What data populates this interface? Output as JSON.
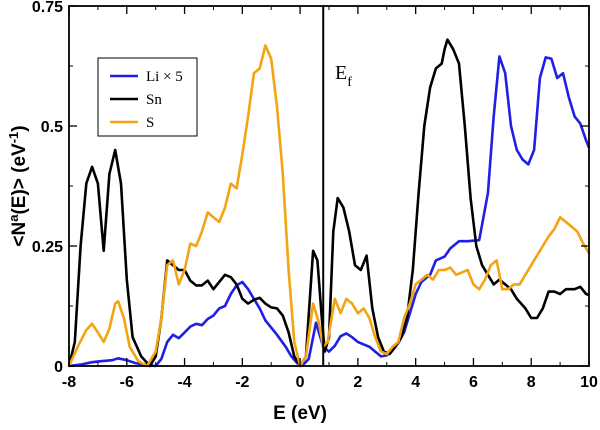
{
  "chart_data": {
    "type": "line",
    "title": "",
    "xlabel": "E  (eV)",
    "ylabel_main": "<N",
    "ylabel_sup": "a",
    "ylabel_mid": "(E)>  (eV",
    "ylabel_sup2": "-1",
    "ylabel_end": ")",
    "xlim": [
      -8,
      10
    ],
    "ylim": [
      0,
      0.75
    ],
    "xticks": [
      -8,
      -6,
      -4,
      -2,
      0,
      2,
      4,
      6,
      8,
      10
    ],
    "xtick_labels": [
      "-8",
      "-6",
      "-4",
      "-2",
      "0",
      "2",
      "4",
      "6",
      "8",
      "10"
    ],
    "yticks": [
      0,
      0.25,
      0.5,
      0.75
    ],
    "ytick_labels": [
      "0",
      "0.25",
      "0.5",
      "0.75"
    ],
    "grid": false,
    "legend_position": "top-left",
    "fermi_level": 0.8,
    "annotation": {
      "text": "E",
      "sub": "f"
    },
    "series": [
      {
        "name": "Li × 5",
        "color": "#1f1fe6",
        "points": [
          [
            -8,
            0.0
          ],
          [
            -7.6,
            0.003
          ],
          [
            -7.2,
            0.008
          ],
          [
            -6.9,
            0.01
          ],
          [
            -6.5,
            0.012
          ],
          [
            -6.3,
            0.016
          ],
          [
            -6.0,
            0.012
          ],
          [
            -5.7,
            0.006
          ],
          [
            -5.3,
            0.002
          ],
          [
            -5.0,
            0.0
          ],
          [
            -4.8,
            0.015
          ],
          [
            -4.6,
            0.05
          ],
          [
            -4.4,
            0.065
          ],
          [
            -4.2,
            0.058
          ],
          [
            -4.0,
            0.07
          ],
          [
            -3.8,
            0.082
          ],
          [
            -3.6,
            0.088
          ],
          [
            -3.4,
            0.085
          ],
          [
            -3.2,
            0.098
          ],
          [
            -3.0,
            0.105
          ],
          [
            -2.8,
            0.12
          ],
          [
            -2.6,
            0.125
          ],
          [
            -2.4,
            0.15
          ],
          [
            -2.2,
            0.168
          ],
          [
            -2.0,
            0.175
          ],
          [
            -1.8,
            0.16
          ],
          [
            -1.6,
            0.14
          ],
          [
            -1.4,
            0.12
          ],
          [
            -1.2,
            0.095
          ],
          [
            -1.0,
            0.08
          ],
          [
            -0.8,
            0.065
          ],
          [
            -0.5,
            0.04
          ],
          [
            -0.3,
            0.02
          ],
          [
            -0.1,
            0.006
          ],
          [
            0.1,
            0.002
          ],
          [
            0.3,
            0.015
          ],
          [
            0.55,
            0.09
          ],
          [
            0.8,
            0.04
          ],
          [
            1.0,
            0.03
          ],
          [
            1.2,
            0.042
          ],
          [
            1.4,
            0.062
          ],
          [
            1.6,
            0.068
          ],
          [
            1.8,
            0.06
          ],
          [
            2.0,
            0.05
          ],
          [
            2.2,
            0.045
          ],
          [
            2.4,
            0.04
          ],
          [
            2.6,
            0.03
          ],
          [
            2.8,
            0.02
          ],
          [
            3.0,
            0.022
          ],
          [
            3.2,
            0.035
          ],
          [
            3.4,
            0.048
          ],
          [
            3.6,
            0.07
          ],
          [
            3.8,
            0.11
          ],
          [
            4.0,
            0.15
          ],
          [
            4.2,
            0.175
          ],
          [
            4.5,
            0.19
          ],
          [
            4.7,
            0.22
          ],
          [
            5.0,
            0.228
          ],
          [
            5.2,
            0.245
          ],
          [
            5.5,
            0.26
          ],
          [
            5.8,
            0.26
          ],
          [
            6.2,
            0.262
          ],
          [
            6.5,
            0.36
          ],
          [
            6.7,
            0.52
          ],
          [
            6.9,
            0.645
          ],
          [
            7.1,
            0.61
          ],
          [
            7.3,
            0.5
          ],
          [
            7.5,
            0.45
          ],
          [
            7.7,
            0.43
          ],
          [
            7.9,
            0.42
          ],
          [
            8.1,
            0.45
          ],
          [
            8.3,
            0.6
          ],
          [
            8.5,
            0.643
          ],
          [
            8.7,
            0.64
          ],
          [
            8.9,
            0.6
          ],
          [
            9.1,
            0.61
          ],
          [
            9.3,
            0.56
          ],
          [
            9.5,
            0.52
          ],
          [
            9.7,
            0.505
          ],
          [
            9.9,
            0.47
          ],
          [
            10.0,
            0.455
          ]
        ]
      },
      {
        "name": "Sn",
        "color": "#000000",
        "points": [
          [
            -8,
            0.0
          ],
          [
            -7.8,
            0.05
          ],
          [
            -7.6,
            0.25
          ],
          [
            -7.4,
            0.38
          ],
          [
            -7.2,
            0.415
          ],
          [
            -7.0,
            0.38
          ],
          [
            -6.8,
            0.24
          ],
          [
            -6.6,
            0.4
          ],
          [
            -6.4,
            0.45
          ],
          [
            -6.2,
            0.38
          ],
          [
            -6.0,
            0.18
          ],
          [
            -5.8,
            0.06
          ],
          [
            -5.5,
            0.02
          ],
          [
            -5.2,
            0.0
          ],
          [
            -5.0,
            0.02
          ],
          [
            -4.8,
            0.1
          ],
          [
            -4.6,
            0.22
          ],
          [
            -4.4,
            0.21
          ],
          [
            -4.2,
            0.2
          ],
          [
            -4.0,
            0.2
          ],
          [
            -3.8,
            0.178
          ],
          [
            -3.6,
            0.168
          ],
          [
            -3.4,
            0.168
          ],
          [
            -3.2,
            0.178
          ],
          [
            -3.0,
            0.16
          ],
          [
            -2.8,
            0.175
          ],
          [
            -2.6,
            0.19
          ],
          [
            -2.4,
            0.185
          ],
          [
            -2.2,
            0.17
          ],
          [
            -2.0,
            0.14
          ],
          [
            -1.8,
            0.13
          ],
          [
            -1.6,
            0.138
          ],
          [
            -1.4,
            0.142
          ],
          [
            -1.2,
            0.13
          ],
          [
            -1.0,
            0.122
          ],
          [
            -0.8,
            0.12
          ],
          [
            -0.6,
            0.105
          ],
          [
            -0.4,
            0.07
          ],
          [
            -0.2,
            0.02
          ],
          [
            0.0,
            0.0
          ],
          [
            0.2,
            0.02
          ],
          [
            0.45,
            0.24
          ],
          [
            0.6,
            0.22
          ],
          [
            0.75,
            0.1
          ],
          [
            0.85,
            0.03
          ],
          [
            1.0,
            0.06
          ],
          [
            1.15,
            0.28
          ],
          [
            1.3,
            0.35
          ],
          [
            1.5,
            0.33
          ],
          [
            1.7,
            0.28
          ],
          [
            1.9,
            0.21
          ],
          [
            2.1,
            0.2
          ],
          [
            2.3,
            0.23
          ],
          [
            2.5,
            0.12
          ],
          [
            2.7,
            0.06
          ],
          [
            2.9,
            0.03
          ],
          [
            3.1,
            0.025
          ],
          [
            3.3,
            0.04
          ],
          [
            3.5,
            0.06
          ],
          [
            3.7,
            0.1
          ],
          [
            3.9,
            0.2
          ],
          [
            4.1,
            0.36
          ],
          [
            4.3,
            0.5
          ],
          [
            4.5,
            0.58
          ],
          [
            4.7,
            0.62
          ],
          [
            4.9,
            0.63
          ],
          [
            5.0,
            0.66
          ],
          [
            5.1,
            0.68
          ],
          [
            5.3,
            0.66
          ],
          [
            5.5,
            0.63
          ],
          [
            5.7,
            0.5
          ],
          [
            5.9,
            0.35
          ],
          [
            6.1,
            0.25
          ],
          [
            6.3,
            0.21
          ],
          [
            6.5,
            0.19
          ],
          [
            6.7,
            0.17
          ],
          [
            6.9,
            0.18
          ],
          [
            7.1,
            0.17
          ],
          [
            7.3,
            0.16
          ],
          [
            7.5,
            0.14
          ],
          [
            7.8,
            0.12
          ],
          [
            8.0,
            0.1
          ],
          [
            8.2,
            0.1
          ],
          [
            8.4,
            0.12
          ],
          [
            8.6,
            0.155
          ],
          [
            8.8,
            0.155
          ],
          [
            9.0,
            0.15
          ],
          [
            9.2,
            0.16
          ],
          [
            9.5,
            0.16
          ],
          [
            9.7,
            0.165
          ],
          [
            9.9,
            0.15
          ],
          [
            10.0,
            0.148
          ]
        ]
      },
      {
        "name": "S",
        "color": "#f2a413",
        "points": [
          [
            -8,
            0.0
          ],
          [
            -7.7,
            0.04
          ],
          [
            -7.4,
            0.075
          ],
          [
            -7.2,
            0.088
          ],
          [
            -7.0,
            0.07
          ],
          [
            -6.8,
            0.05
          ],
          [
            -6.6,
            0.078
          ],
          [
            -6.4,
            0.13
          ],
          [
            -6.3,
            0.135
          ],
          [
            -6.1,
            0.1
          ],
          [
            -5.9,
            0.04
          ],
          [
            -5.6,
            0.01
          ],
          [
            -5.3,
            0.0
          ],
          [
            -5.0,
            0.03
          ],
          [
            -4.8,
            0.1
          ],
          [
            -4.6,
            0.21
          ],
          [
            -4.4,
            0.22
          ],
          [
            -4.2,
            0.17
          ],
          [
            -4.0,
            0.2
          ],
          [
            -3.8,
            0.255
          ],
          [
            -3.6,
            0.25
          ],
          [
            -3.4,
            0.28
          ],
          [
            -3.2,
            0.32
          ],
          [
            -3.0,
            0.31
          ],
          [
            -2.8,
            0.3
          ],
          [
            -2.6,
            0.33
          ],
          [
            -2.4,
            0.38
          ],
          [
            -2.2,
            0.37
          ],
          [
            -2.0,
            0.44
          ],
          [
            -1.8,
            0.52
          ],
          [
            -1.6,
            0.61
          ],
          [
            -1.4,
            0.62
          ],
          [
            -1.2,
            0.668
          ],
          [
            -1.0,
            0.64
          ],
          [
            -0.8,
            0.54
          ],
          [
            -0.6,
            0.4
          ],
          [
            -0.4,
            0.2
          ],
          [
            -0.2,
            0.05
          ],
          [
            0.0,
            0.0
          ],
          [
            0.2,
            0.02
          ],
          [
            0.45,
            0.13
          ],
          [
            0.65,
            0.09
          ],
          [
            0.8,
            0.04
          ],
          [
            0.95,
            0.05
          ],
          [
            1.2,
            0.14
          ],
          [
            1.4,
            0.11
          ],
          [
            1.6,
            0.14
          ],
          [
            1.8,
            0.13
          ],
          [
            2.0,
            0.11
          ],
          [
            2.2,
            0.12
          ],
          [
            2.4,
            0.1
          ],
          [
            2.6,
            0.06
          ],
          [
            2.8,
            0.03
          ],
          [
            3.0,
            0.025
          ],
          [
            3.2,
            0.04
          ],
          [
            3.4,
            0.05
          ],
          [
            3.6,
            0.1
          ],
          [
            3.8,
            0.13
          ],
          [
            4.0,
            0.17
          ],
          [
            4.2,
            0.18
          ],
          [
            4.4,
            0.19
          ],
          [
            4.6,
            0.18
          ],
          [
            4.8,
            0.2
          ],
          [
            5.0,
            0.2
          ],
          [
            5.2,
            0.205
          ],
          [
            5.4,
            0.19
          ],
          [
            5.6,
            0.195
          ],
          [
            5.8,
            0.2
          ],
          [
            6.0,
            0.17
          ],
          [
            6.2,
            0.16
          ],
          [
            6.4,
            0.18
          ],
          [
            6.6,
            0.21
          ],
          [
            6.8,
            0.22
          ],
          [
            7.0,
            0.16
          ],
          [
            7.2,
            0.16
          ],
          [
            7.4,
            0.17
          ],
          [
            7.6,
            0.17
          ],
          [
            7.8,
            0.19
          ],
          [
            8.0,
            0.21
          ],
          [
            8.2,
            0.23
          ],
          [
            8.4,
            0.25
          ],
          [
            8.6,
            0.27
          ],
          [
            8.8,
            0.285
          ],
          [
            9.0,
            0.31
          ],
          [
            9.2,
            0.3
          ],
          [
            9.4,
            0.29
          ],
          [
            9.6,
            0.28
          ],
          [
            9.8,
            0.255
          ],
          [
            10.0,
            0.235
          ]
        ]
      }
    ]
  }
}
